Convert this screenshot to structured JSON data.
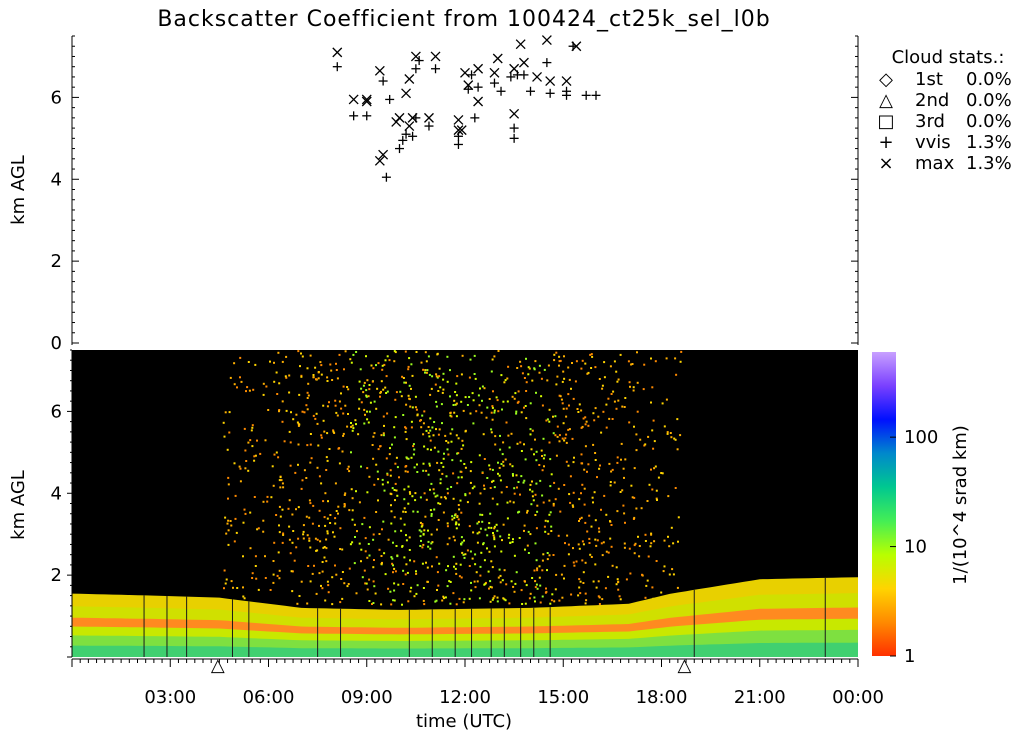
{
  "title": "Backscatter Coefficient from 100424_ct25k_sel_l0b",
  "chart_data": [
    {
      "type": "scatter",
      "panel": "cloud-base-detections",
      "ylabel": "km AGL",
      "ylim": [
        0,
        7.5
      ],
      "xlim": [
        0,
        24
      ],
      "y_ticks": [
        0,
        2,
        4,
        6
      ],
      "legend": {
        "placement": "top-right",
        "title": "Cloud stats.:",
        "entries": [
          {
            "symbol": "◇",
            "name": "1st",
            "value": "0.0%"
          },
          {
            "symbol": "△",
            "name": "2nd",
            "value": "0.0%"
          },
          {
            "symbol": "□",
            "name": "3rd",
            "value": "0.0%"
          },
          {
            "symbol": "+",
            "name": "vvis",
            "value": "1.3%"
          },
          {
            "symbol": "×",
            "name": "max",
            "value": "1.3%"
          }
        ]
      },
      "series": [
        {
          "name": "max",
          "marker": "x",
          "points": [
            [
              8.1,
              7.1
            ],
            [
              8.6,
              5.95
            ],
            [
              9.0,
              5.95
            ],
            [
              9.0,
              5.9
            ],
            [
              9.4,
              6.65
            ],
            [
              9.4,
              4.45
            ],
            [
              9.5,
              4.6
            ],
            [
              9.9,
              5.4
            ],
            [
              10.0,
              5.5
            ],
            [
              10.2,
              6.1
            ],
            [
              10.3,
              6.45
            ],
            [
              10.3,
              5.3
            ],
            [
              10.4,
              5.5
            ],
            [
              10.5,
              7.0
            ],
            [
              10.9,
              5.5
            ],
            [
              11.1,
              7.0
            ],
            [
              11.8,
              5.45
            ],
            [
              11.8,
              5.2
            ],
            [
              11.9,
              5.2
            ],
            [
              12.0,
              6.6
            ],
            [
              12.1,
              6.3
            ],
            [
              12.4,
              5.9
            ],
            [
              12.4,
              6.7
            ],
            [
              12.9,
              6.6
            ],
            [
              13.0,
              6.95
            ],
            [
              13.5,
              5.6
            ],
            [
              13.5,
              6.7
            ],
            [
              13.7,
              7.3
            ],
            [
              13.8,
              6.85
            ],
            [
              14.2,
              6.5
            ],
            [
              14.5,
              7.4
            ],
            [
              14.6,
              6.4
            ],
            [
              15.1,
              6.4
            ],
            [
              15.4,
              7.25
            ]
          ]
        },
        {
          "name": "vvis",
          "marker": "+",
          "points": [
            [
              8.1,
              6.75
            ],
            [
              8.6,
              5.55
            ],
            [
              9.0,
              5.55
            ],
            [
              9.5,
              6.4
            ],
            [
              9.6,
              4.05
            ],
            [
              9.7,
              5.95
            ],
            [
              10.0,
              4.75
            ],
            [
              10.1,
              4.95
            ],
            [
              10.2,
              5.1
            ],
            [
              10.4,
              5.05
            ],
            [
              10.5,
              6.7
            ],
            [
              10.5,
              5.5
            ],
            [
              10.6,
              6.9
            ],
            [
              10.9,
              5.3
            ],
            [
              11.1,
              6.7
            ],
            [
              11.8,
              4.85
            ],
            [
              11.8,
              5.05
            ],
            [
              12.1,
              6.2
            ],
            [
              12.2,
              6.55
            ],
            [
              12.3,
              5.5
            ],
            [
              12.4,
              6.25
            ],
            [
              12.9,
              6.35
            ],
            [
              13.1,
              6.15
            ],
            [
              13.4,
              6.5
            ],
            [
              13.5,
              5.25
            ],
            [
              13.5,
              5.0
            ],
            [
              13.6,
              6.55
            ],
            [
              13.8,
              6.55
            ],
            [
              14.0,
              6.15
            ],
            [
              14.5,
              6.85
            ],
            [
              14.6,
              6.1
            ],
            [
              15.1,
              6.05
            ],
            [
              15.1,
              6.15
            ],
            [
              15.3,
              7.25
            ],
            [
              15.7,
              6.05
            ],
            [
              16.0,
              6.05
            ]
          ]
        }
      ],
      "axis_markers": [
        {
          "symbol": "△",
          "time": 4.45
        },
        {
          "symbol": "△",
          "time": 18.7
        }
      ]
    },
    {
      "type": "heatmap",
      "panel": "backscatter",
      "ylabel": "km AGL",
      "xlabel": "time (UTC)",
      "ylim": [
        0,
        7.5
      ],
      "xlim": [
        0,
        24
      ],
      "y_ticks": [
        2,
        4,
        6
      ],
      "x_ticks": [
        "03:00",
        "06:00",
        "09:00",
        "12:00",
        "15:00",
        "18:00",
        "21:00",
        "00:00"
      ],
      "x_tick_hours": [
        3,
        6,
        9,
        12,
        15,
        18,
        21,
        24
      ],
      "colorbar": {
        "label": "1/(10^4 srad km)",
        "scale": "log",
        "ticks": [
          "1",
          "10",
          "100"
        ],
        "tick_values": [
          1,
          10,
          100
        ],
        "range": [
          1,
          600
        ],
        "colors": [
          "#ff3000",
          "#ff8a00",
          "#ffd400",
          "#b8ff00",
          "#44ee55",
          "#00c890",
          "#0088cc",
          "#0010ff",
          "#7a40ff",
          "#c8a0ff"
        ]
      },
      "background_color": "#000000",
      "boundary_layer_top_km": [
        [
          0,
          1.55
        ],
        [
          2.5,
          1.5
        ],
        [
          4.5,
          1.45
        ],
        [
          7,
          1.2
        ],
        [
          10,
          1.15
        ],
        [
          14,
          1.2
        ],
        [
          17,
          1.3
        ],
        [
          18.3,
          1.55
        ],
        [
          21,
          1.9
        ],
        [
          24,
          1.95
        ]
      ],
      "noise_period_hours": [
        4.6,
        18.6
      ]
    }
  ]
}
